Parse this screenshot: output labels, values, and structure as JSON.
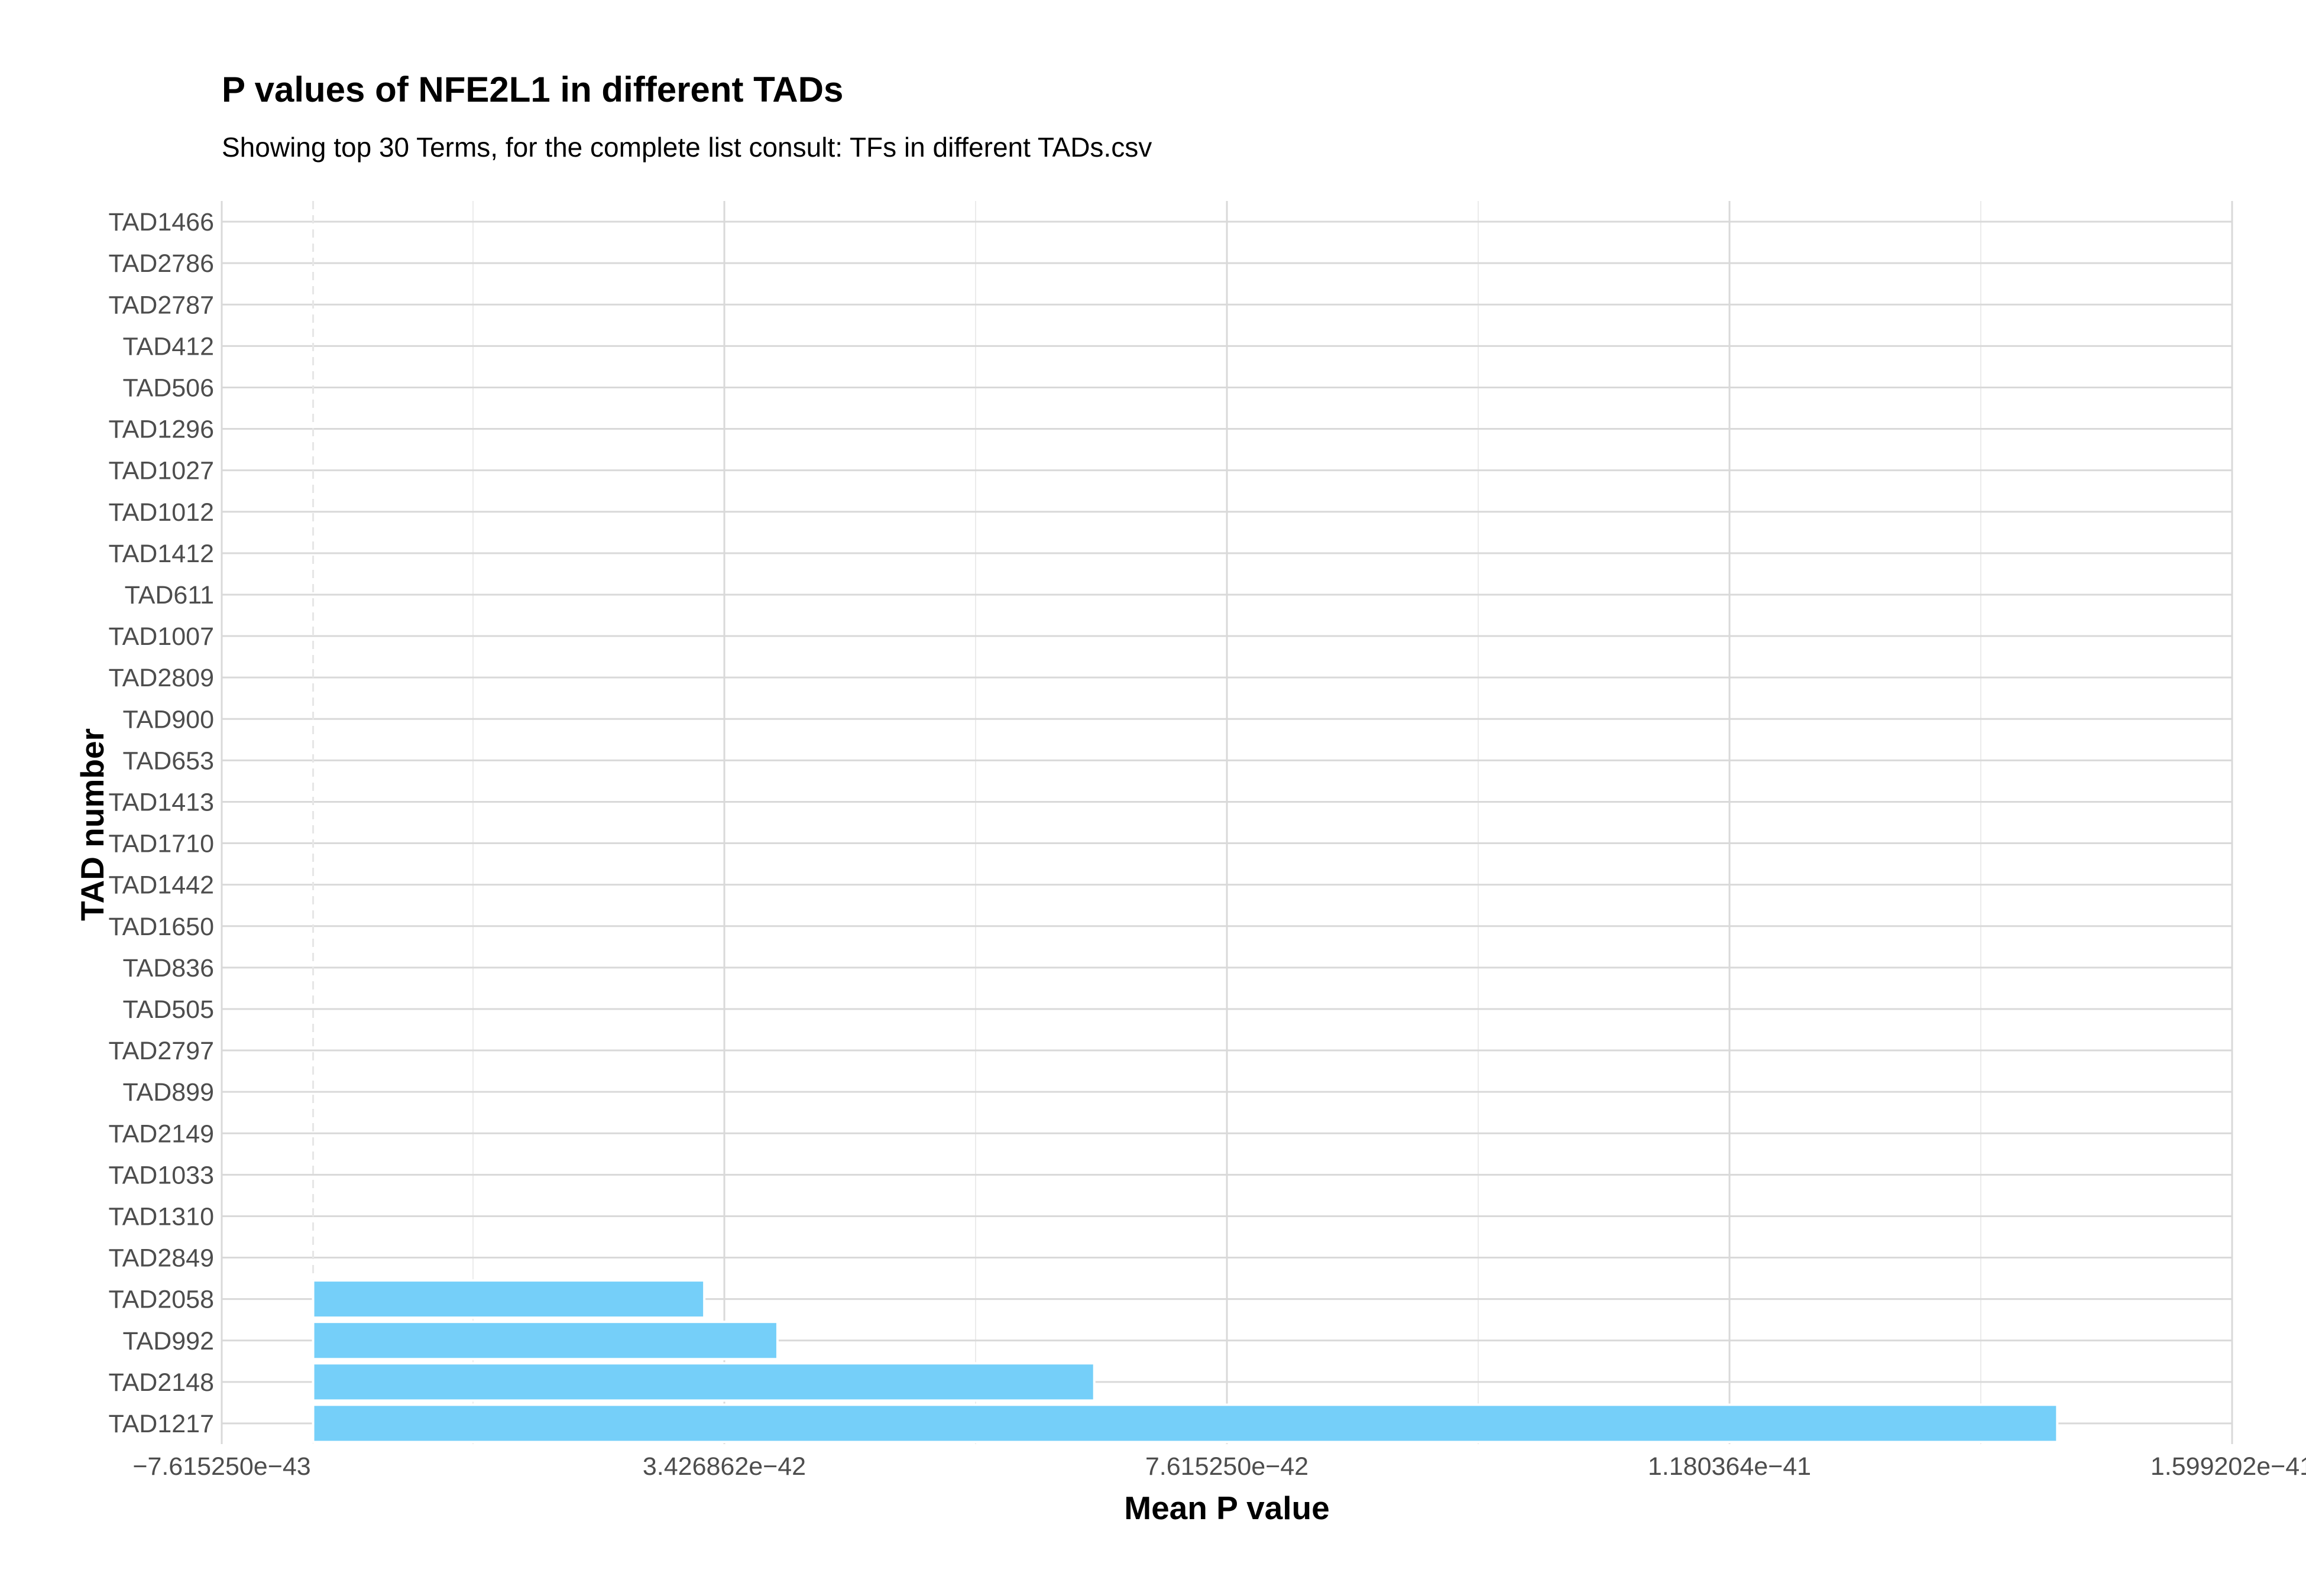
{
  "chart_data": {
    "type": "bar",
    "orientation": "horizontal",
    "title": "P values of NFE2L1 in different TADs",
    "subtitle": "Showing top 30 Terms, for the complete list consult: TFs in different TADs.csv",
    "xlabel": "Mean P value",
    "ylabel": "TAD number",
    "categories": [
      "TAD1466",
      "TAD2786",
      "TAD2787",
      "TAD412",
      "TAD506",
      "TAD1296",
      "TAD1027",
      "TAD1012",
      "TAD1412",
      "TAD611",
      "TAD1007",
      "TAD2809",
      "TAD900",
      "TAD653",
      "TAD1413",
      "TAD1710",
      "TAD1442",
      "TAD1650",
      "TAD836",
      "TAD505",
      "TAD2797",
      "TAD899",
      "TAD2149",
      "TAD1033",
      "TAD1310",
      "TAD2849",
      "TAD2058",
      "TAD992",
      "TAD2148",
      "TAD1217"
    ],
    "values": [
      0,
      0,
      0,
      0,
      0,
      0,
      0,
      0,
      0,
      0,
      0,
      0,
      0,
      0,
      0,
      0,
      0,
      0,
      0,
      0,
      0,
      0,
      0,
      0,
      0,
      0,
      3.26e-42,
      3.87e-42,
      6.51e-42,
      1.4535e-41
    ],
    "xlim": [
      -7.61525e-43,
      1.599202e-41
    ],
    "x_ticks": [
      -7.61525e-43,
      3.426862e-42,
      7.61525e-42,
      1.180364e-41,
      1.599202e-41
    ],
    "x_tick_labels": [
      "−7.615250e−43",
      "3.426862e−42",
      "7.615250e−42",
      "1.180364e−41",
      "1.599202e−41"
    ],
    "bar_color": "#75cff9",
    "grid": true,
    "legend": "none"
  }
}
